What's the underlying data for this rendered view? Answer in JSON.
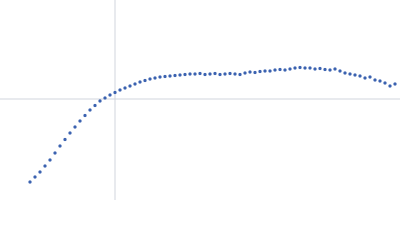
{
  "chart_data": {
    "type": "scatter",
    "color": "#3b62b0",
    "xlim": [
      0,
      400
    ],
    "ylim": [
      0,
      200
    ],
    "reference_x": 115,
    "reference_y": 101,
    "x": [
      30,
      35,
      40,
      45,
      50,
      55,
      60,
      65,
      70,
      75,
      80,
      85,
      90,
      95,
      100,
      105,
      110,
      115,
      120,
      125,
      130,
      135,
      140,
      145,
      150,
      155,
      160,
      165,
      170,
      175,
      180,
      185,
      190,
      195,
      200,
      205,
      210,
      215,
      220,
      225,
      230,
      235,
      240,
      245,
      250,
      255,
      260,
      265,
      270,
      275,
      280,
      285,
      290,
      295,
      300,
      305,
      310,
      315,
      320,
      325,
      330,
      335,
      340,
      345,
      350,
      355,
      360,
      365,
      370,
      375,
      380,
      385,
      390,
      395
    ],
    "y": [
      18,
      23,
      28,
      34,
      40,
      47,
      54,
      60.5,
      67,
      73,
      79,
      84.5,
      90,
      94.5,
      99,
      102,
      105,
      107.5,
      110,
      112,
      114,
      116,
      118,
      119.5,
      121,
      122,
      123,
      123.5,
      124,
      124.5,
      125,
      125.5,
      126,
      126,
      126.5,
      125.5,
      126,
      126.5,
      125.5,
      126,
      126.5,
      126,
      125.5,
      127,
      128,
      127.5,
      128.5,
      129,
      129,
      130,
      130.5,
      130,
      131,
      132,
      132.5,
      132,
      132,
      131,
      131.5,
      130.5,
      130,
      131,
      129,
      127,
      126,
      125,
      124,
      122,
      123,
      120,
      119,
      117,
      114,
      116
    ]
  }
}
